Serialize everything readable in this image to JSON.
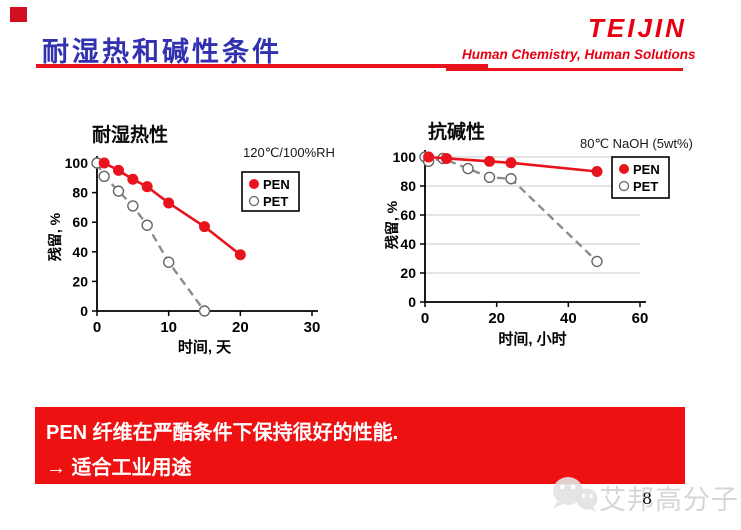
{
  "header": {
    "title": "耐湿热和碱性条件",
    "logo": "TEIJIN",
    "tagline": "Human Chemistry, Human Solutions"
  },
  "chart_data": [
    {
      "type": "line",
      "title": "耐湿热性",
      "annotation": "120℃/100%RH",
      "xlabel": "时间, 天",
      "ylabel": "残留, %",
      "xlim": [
        0,
        30
      ],
      "ylim": [
        0,
        100
      ],
      "xticks": [
        0,
        10,
        20,
        30
      ],
      "yticks": [
        0,
        20,
        40,
        60,
        80,
        100
      ],
      "grid": false,
      "legend_position": "right-top",
      "series": [
        {
          "name": "PEN",
          "color": "#e8131d",
          "line_style": "solid",
          "marker": "filled-circle",
          "points": [
            [
              1,
              100
            ],
            [
              3,
              95
            ],
            [
              5,
              89
            ],
            [
              7,
              84
            ],
            [
              10,
              73
            ],
            [
              15,
              57
            ],
            [
              20,
              38
            ]
          ]
        },
        {
          "name": "PET",
          "color": "#8c8c8c",
          "marker_color": "#666666",
          "line_style": "dashed",
          "marker": "open-circle",
          "points": [
            [
              0,
              100
            ],
            [
              1,
              91
            ],
            [
              3,
              81
            ],
            [
              5,
              71
            ],
            [
              7,
              58
            ],
            [
              10,
              33
            ],
            [
              15,
              0
            ]
          ]
        }
      ]
    },
    {
      "type": "line",
      "title": "抗碱性",
      "annotation": "80℃ NaOH (5wt%)",
      "xlabel": "时间, 小时",
      "ylabel": "残留, %",
      "xlim": [
        0,
        60
      ],
      "ylim": [
        0,
        100
      ],
      "xticks": [
        0,
        20,
        40,
        60
      ],
      "yticks": [
        0,
        20,
        40,
        60,
        80,
        100
      ],
      "grid": true,
      "legend_position": "right-top",
      "series": [
        {
          "name": "PEN",
          "color": "#e8131d",
          "line_style": "solid",
          "marker": "filled-circle",
          "points": [
            [
              1,
              100
            ],
            [
              6,
              99
            ],
            [
              18,
              97
            ],
            [
              24,
              96
            ],
            [
              48,
              90
            ]
          ]
        },
        {
          "name": "PET",
          "color": "#8c8c8c",
          "marker_color": "#666666",
          "line_style": "dashed",
          "marker": "open-circle",
          "points": [
            [
              0,
              100
            ],
            [
              1,
              97
            ],
            [
              5,
              99
            ],
            [
              12,
              92
            ],
            [
              18,
              86
            ],
            [
              24,
              85
            ],
            [
              48,
              28
            ]
          ]
        }
      ]
    }
  ],
  "banner": {
    "line1": "PEN 纤维在严酷条件下保持很好的性能.",
    "line2": "→ 适合工业用途"
  },
  "footer": {
    "watermark_icon": "chat-face-icon",
    "watermark_text": "艾邦高分子",
    "page_number": "8"
  },
  "colors": {
    "title_blue": "#3232b0",
    "teijin_red": "#e60012",
    "banner_red": "#ee1111",
    "pen_red": "#e8131d",
    "pet_gray": "#8c8c8c",
    "grid_gray": "#c9c9c9",
    "watermark_gray": "#d6d6d6"
  }
}
